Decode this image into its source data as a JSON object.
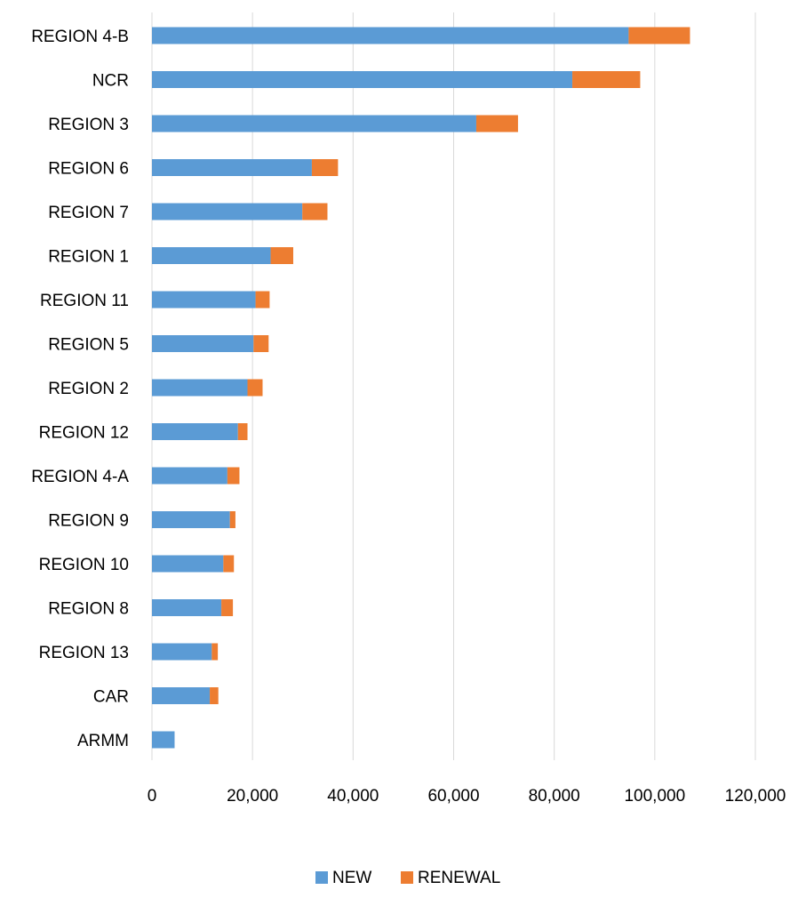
{
  "chart_data": {
    "type": "bar",
    "orientation": "horizontal",
    "stacked": true,
    "categories": [
      "REGION 4-B",
      "NCR",
      "REGION 3",
      "REGION 6",
      "REGION 7",
      "REGION 1",
      "REGION 11",
      "REGION 5",
      "REGION 2",
      "REGION 12",
      "REGION 4-A",
      "REGION 9",
      "REGION 10",
      "REGION 8",
      "REGION 13",
      "CAR",
      "ARMM"
    ],
    "series": [
      {
        "name": "NEW",
        "color": "#5B9BD5",
        "values": [
          94800,
          83600,
          64500,
          31800,
          29900,
          23600,
          20600,
          20200,
          19000,
          17100,
          15000,
          15500,
          14200,
          13800,
          11900,
          11500,
          4500
        ]
      },
      {
        "name": "RENEWAL",
        "color": "#ED7D31",
        "values": [
          12200,
          13500,
          8300,
          5200,
          5000,
          4500,
          2800,
          3000,
          3000,
          1900,
          2400,
          1100,
          2100,
          2300,
          1200,
          1700,
          0
        ]
      }
    ],
    "xlim": [
      0,
      120000
    ],
    "xticks": [
      0,
      20000,
      40000,
      60000,
      80000,
      100000,
      120000
    ],
    "xtick_labels": [
      "0",
      "20,000",
      "40,000",
      "60,000",
      "80,000",
      "100,000",
      "120,000"
    ],
    "title": "",
    "xlabel": "",
    "ylabel": "",
    "grid": "vertical",
    "legend_position": "bottom",
    "grid_color": "#D9D9D9"
  }
}
